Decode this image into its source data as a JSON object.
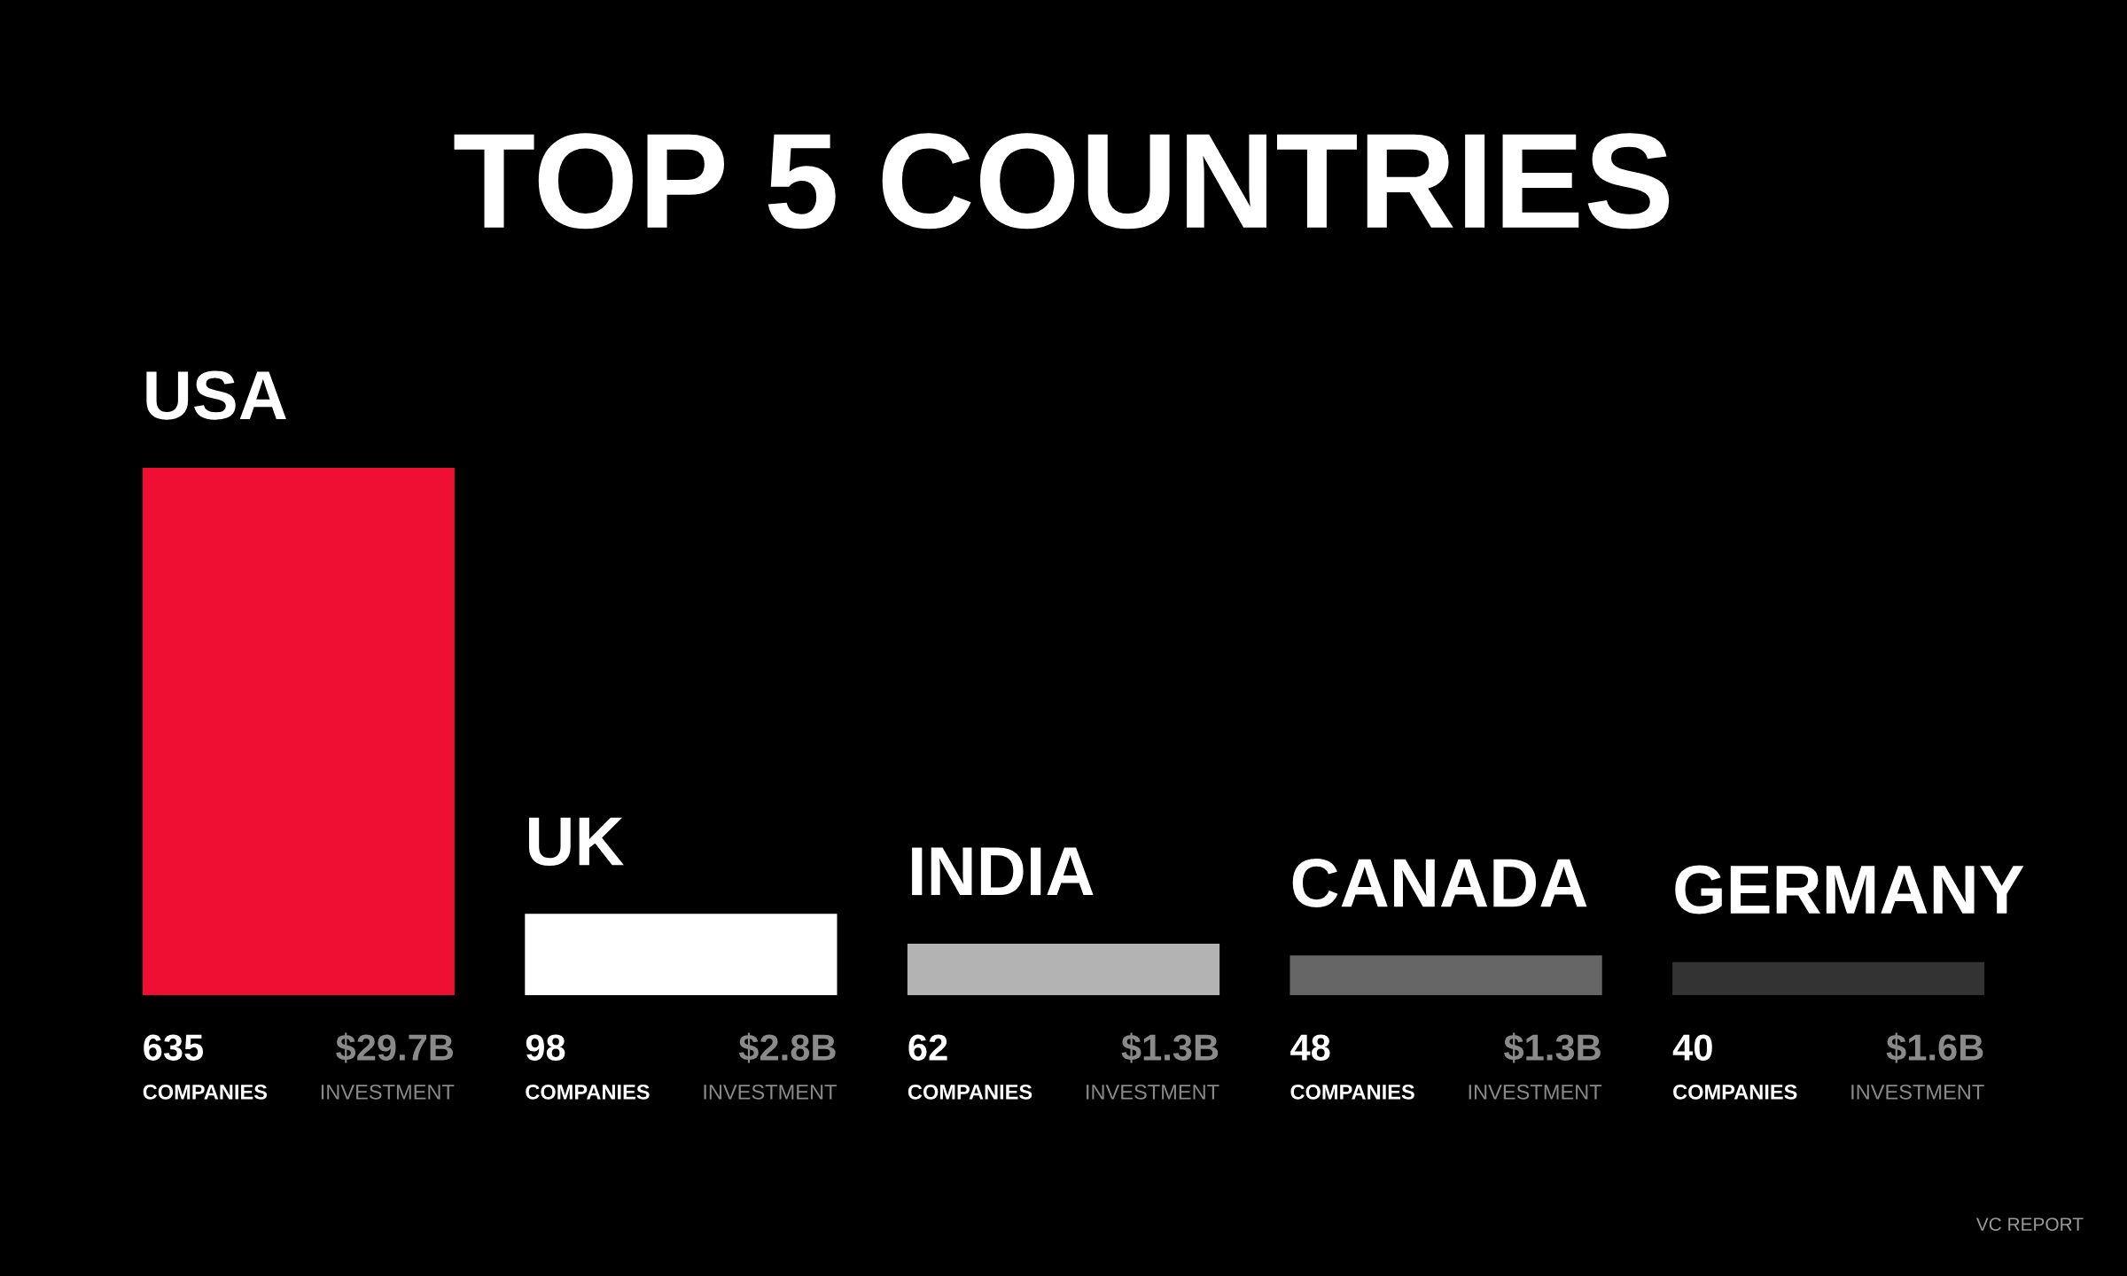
{
  "chart_data": {
    "type": "bar",
    "title": "TOP 5 COUNTRIES",
    "categories": [
      "USA",
      "UK",
      "INDIA",
      "CANADA",
      "GERMANY"
    ],
    "values": [
      635,
      98,
      62,
      48,
      40
    ],
    "colors": [
      "#ee0f32",
      "#ffffff",
      "#b3b3b3",
      "#666666",
      "#333333"
    ],
    "data_labels": true,
    "annotations": [
      "COMPANIES",
      "$29.7B",
      "INVESTMENT",
      "COMPANIES",
      "$2.8B",
      "INVESTMENT",
      "COMPANIES",
      "$1.3B",
      "INVESTMENT",
      "COMPANIES",
      "$1.3B",
      "INVESTMENT",
      "COMPANIES",
      "$1.6B",
      "INVESTMENT",
      "VC REPORT"
    ]
  }
}
